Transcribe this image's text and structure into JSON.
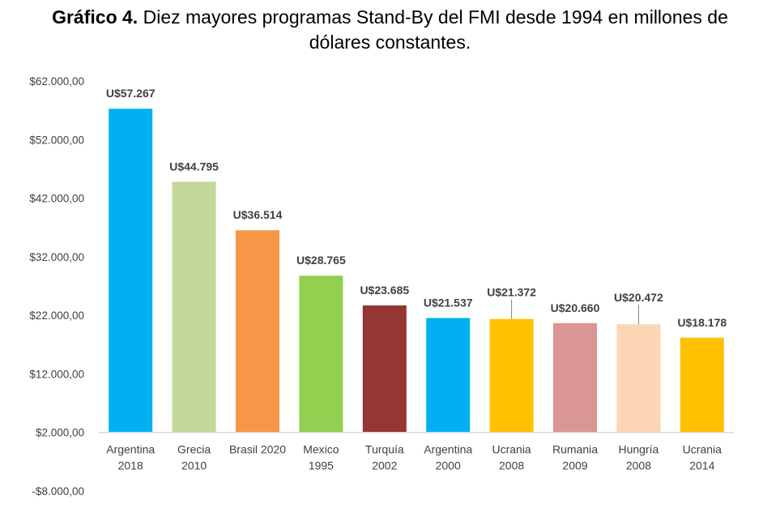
{
  "title": {
    "prefix": "Gráfico 4.",
    "line1": " Diez mayores programas Stand-By del FMI desde 1994 en millones de",
    "line2": "dólares constantes."
  },
  "chart_data": {
    "type": "bar",
    "ylim": [
      -8000,
      62000
    ],
    "yticks": [
      62000,
      52000,
      42000,
      32000,
      22000,
      12000,
      2000,
      -8000
    ],
    "ytick_labels": [
      "$62.000,00",
      "$52.000,00",
      "$42.000,00",
      "$32.000,00",
      "$22.000,00",
      "$12.000,00",
      "$2.000,00",
      "-$8.000,00"
    ],
    "baseline": 2000,
    "grid": false,
    "categories": [
      [
        "Argentina",
        "2018"
      ],
      [
        "Grecia",
        "2010"
      ],
      [
        "Brasil 2020"
      ],
      [
        "Mexico",
        "1995"
      ],
      [
        "Turquía",
        "2002"
      ],
      [
        "Argentina",
        "2000"
      ],
      [
        "Ucrania",
        "2008"
      ],
      [
        "Rumania",
        "2009"
      ],
      [
        "Hungría",
        "2008"
      ],
      [
        "Ucrania",
        "2014"
      ]
    ],
    "values": [
      57267,
      44795,
      36514,
      28765,
      23685,
      21537,
      21372,
      20660,
      20472,
      18178
    ],
    "data_labels": [
      "U$57.267",
      "U$44.795",
      "U$36.514",
      "U$28.765",
      "U$23.685",
      "U$21.537",
      "U$21.372",
      "U$20.660",
      "U$20.472",
      "U$18.178"
    ],
    "colors": [
      "#00B0F0",
      "#C4D79B",
      "#F79646",
      "#92D050",
      "#943634",
      "#00B0F0",
      "#FFC000",
      "#D99694",
      "#FCD5B5",
      "#FFC000"
    ],
    "leader_lines": [
      false,
      false,
      false,
      false,
      false,
      false,
      true,
      false,
      true,
      false
    ]
  }
}
